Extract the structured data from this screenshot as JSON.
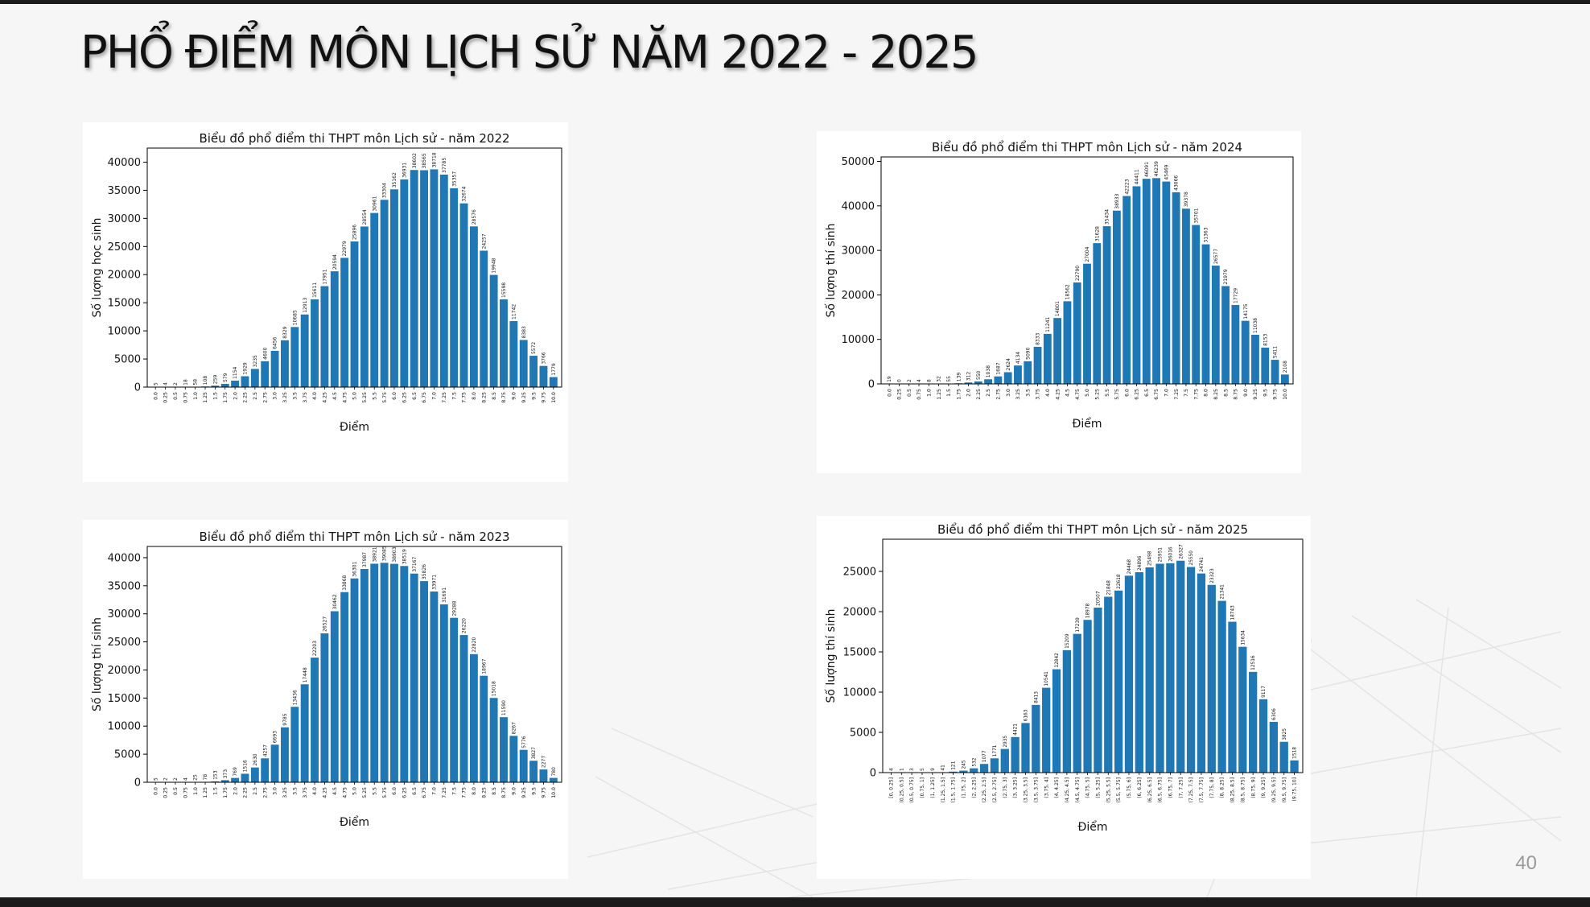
{
  "slide": {
    "title": "PHỔ ĐIỂM MÔN LỊCH SỬ NĂM 2022 - 2025",
    "page_number": "40"
  },
  "chart_data": [
    {
      "type": "bar",
      "title": "Biểu đồ phổ điểm thi THPT môn Lịch sử - năm 2022",
      "xlabel": "Điểm",
      "ylabel": "Số lượng học sinh",
      "ylim": [
        0,
        42500
      ],
      "yticks": [
        0,
        5000,
        10000,
        15000,
        20000,
        25000,
        30000,
        35000,
        40000
      ],
      "bar_color": "#1f77b4",
      "grid": false,
      "categories": [
        "0.0",
        "0.25",
        "0.5",
        "0.75",
        "1.0",
        "1.25",
        "1.5",
        "1.75",
        "2.0",
        "2.25",
        "2.5",
        "2.75",
        "3.0",
        "3.25",
        "3.5",
        "3.75",
        "4.0",
        "4.25",
        "4.5",
        "4.75",
        "5.0",
        "5.25",
        "5.5",
        "5.75",
        "6.0",
        "6.25",
        "6.5",
        "6.75",
        "7.0",
        "7.25",
        "7.5",
        "7.75",
        "8.0",
        "8.25",
        "8.5",
        "8.75",
        "9.0",
        "9.25",
        "9.5",
        "9.75",
        "10.0"
      ],
      "values": [
        5,
        4,
        2,
        18,
        58,
        108,
        259,
        579,
        1154,
        1929,
        3235,
        4600,
        6456,
        8329,
        10685,
        12913,
        15611,
        17951,
        20594,
        22979,
        25896,
        28554,
        30961,
        33304,
        35162,
        36931,
        38602,
        38565,
        38718,
        37785,
        35357,
        32674,
        28576,
        24257,
        19948,
        15598,
        11742,
        8383,
        5572,
        3766,
        1779
      ]
    },
    {
      "type": "bar",
      "title": "Biểu đồ phổ điểm thi THPT môn Lịch sử - năm 2024",
      "xlabel": "Điểm",
      "ylabel": "Số lượng thí sinh",
      "ylim": [
        0,
        51000
      ],
      "yticks": [
        0,
        10000,
        20000,
        30000,
        40000,
        50000
      ],
      "bar_color": "#1f77b4",
      "grid": false,
      "categories": [
        "0.0",
        "0.25",
        "0.5",
        "0.75",
        "1.0",
        "1.25",
        "1.5",
        "1.75",
        "2.0",
        "2.25",
        "2.5",
        "2.75",
        "3.0",
        "3.25",
        "3.5",
        "3.75",
        "4.0",
        "4.25",
        "4.5",
        "4.75",
        "5.0",
        "5.25",
        "5.5",
        "5.75",
        "6.0",
        "6.25",
        "6.5",
        "6.75",
        "7.0",
        "7.25",
        "7.5",
        "7.75",
        "8.0",
        "8.25",
        "8.5",
        "8.75",
        "9.0",
        "9.25",
        "9.5",
        "9.75",
        "10.0"
      ],
      "values": [
        19,
        0,
        2,
        4,
        8,
        32,
        55,
        139,
        312,
        550,
        1038,
        1687,
        2624,
        4134,
        5090,
        8333,
        11241,
        14801,
        18562,
        22790,
        27004,
        31628,
        35434,
        38933,
        42223,
        44411,
        46091,
        46239,
        45469,
        43066,
        39378,
        35701,
        31363,
        26577,
        21979,
        17729,
        14175,
        11038,
        8153,
        5411,
        2108
      ]
    },
    {
      "type": "bar",
      "title": "Biểu đồ phổ điểm thi THPT môn Lịch sử - năm 2023",
      "xlabel": "Điểm",
      "ylabel": "Số lượng thí sinh",
      "ylim": [
        0,
        42000
      ],
      "yticks": [
        0,
        5000,
        10000,
        15000,
        20000,
        25000,
        30000,
        35000,
        40000
      ],
      "bar_color": "#1f77b4",
      "grid": false,
      "categories": [
        "0.0",
        "0.25",
        "0.5",
        "0.75",
        "1.0",
        "1.25",
        "1.5",
        "1.75",
        "2.0",
        "2.25",
        "2.5",
        "2.75",
        "3.0",
        "3.25",
        "3.5",
        "3.75",
        "4.0",
        "4.25",
        "4.5",
        "4.75",
        "5.0",
        "5.25",
        "5.5",
        "5.75",
        "6.0",
        "6.25",
        "6.5",
        "6.75",
        "7.0",
        "7.25",
        "7.5",
        "7.75",
        "8.0",
        "8.25",
        "8.5",
        "8.75",
        "9.0",
        "9.25",
        "9.5",
        "9.75",
        "10.0"
      ],
      "values": [
        5,
        2,
        2,
        4,
        25,
        78,
        153,
        373,
        769,
        1516,
        2630,
        4257,
        6693,
        9785,
        13436,
        17448,
        22203,
        26527,
        30462,
        33868,
        36301,
        37987,
        38921,
        39085,
        38903,
        38519,
        37167,
        35826,
        33971,
        31691,
        29288,
        26220,
        22820,
        18967,
        15018,
        11590,
        8267,
        5776,
        3827,
        2277,
        780
      ]
    },
    {
      "type": "bar",
      "title": "Biểu đồ phổ điểm thi THPT môn Lịch sử - năm 2025",
      "xlabel": "Điểm",
      "ylabel": "Số lượng thí sinh",
      "ylim": [
        0,
        29000
      ],
      "yticks": [
        0,
        5000,
        10000,
        15000,
        20000,
        25000
      ],
      "bar_color": "#1f77b4",
      "grid": false,
      "categories": [
        "[0, 0.25]",
        "(0.25, 0.5]",
        "(0.5, 0.75]",
        "(0.75, 1]",
        "(1, 1.25]",
        "(1.25, 1.5]",
        "(1.5, 1.75]",
        "(1.75, 2]",
        "(2, 2.25]",
        "(2.25, 2.5]",
        "(2.5, 2.75]",
        "(2.75, 3]",
        "(3, 3.25]",
        "(3.25, 3.5]",
        "(3.5, 3.75]",
        "(3.75, 4]",
        "(4, 4.25]",
        "(4.25, 4.5]",
        "(4.5, 4.75]",
        "(4.75, 5]",
        "(5, 5.25]",
        "(5.25, 5.5]",
        "(5.5, 5.75]",
        "(5.75, 6]",
        "(6, 6.25]",
        "(6.25, 6.5]",
        "(6.5, 6.75]",
        "(6.75, 7]",
        "(7, 7.25]",
        "(7.25, 7.5]",
        "(7.5, 7.75]",
        "(7.75, 8]",
        "(8, 8.25]",
        "(8.25, 8.5]",
        "(8.5, 8.75]",
        "(8.75, 9]",
        "(9, 9.25]",
        "(9.25, 9.5]",
        "(9.5, 9.75]",
        "(9.75, 10]"
      ],
      "values": [
        4,
        1,
        3,
        5,
        9,
        41,
        121,
        245,
        532,
        1077,
        1771,
        2935,
        4421,
        6163,
        8413,
        10541,
        12842,
        15209,
        17239,
        18978,
        20507,
        21848,
        22618,
        24468,
        24896,
        25498,
        25951,
        26016,
        26327,
        25550,
        24741,
        23323,
        21341,
        18743,
        15634,
        12516,
        9117,
        6306,
        3825,
        1518
      ]
    }
  ]
}
